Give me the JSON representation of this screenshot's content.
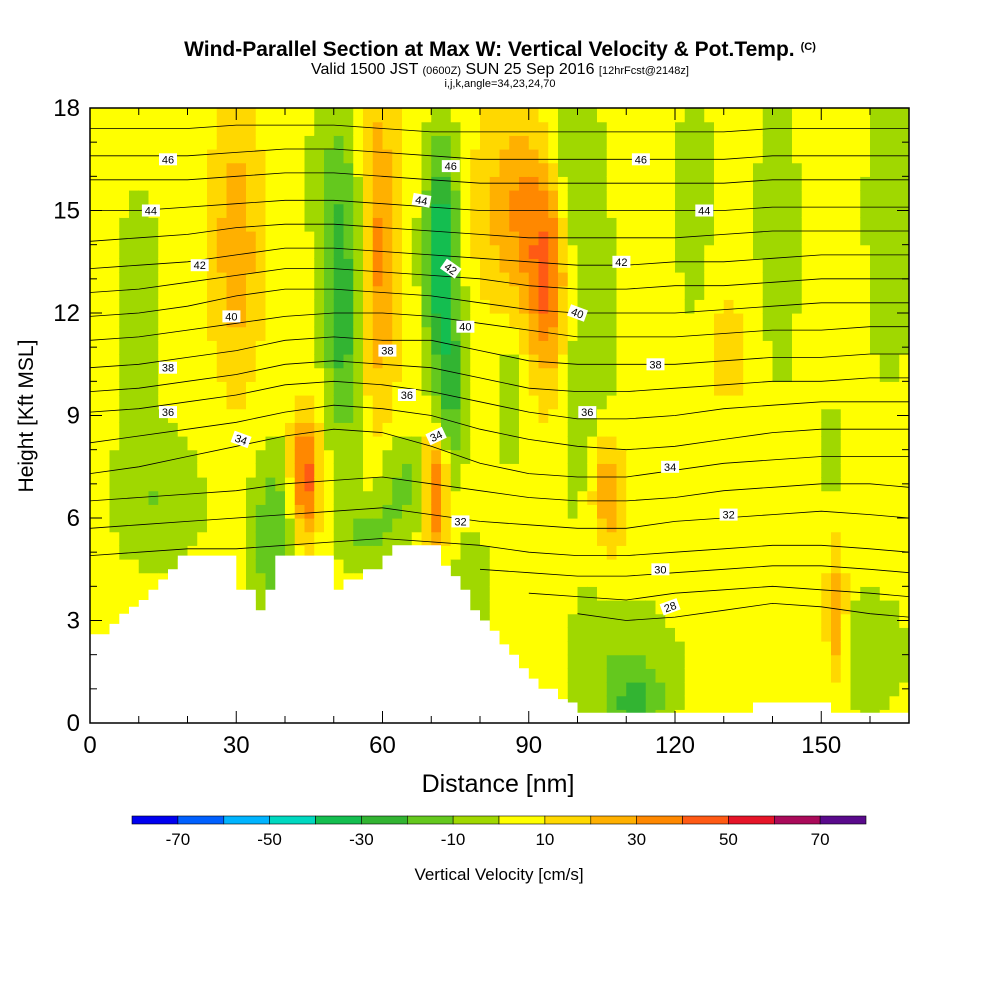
{
  "chart_data": {
    "type": "heatmap",
    "title": "Wind-Parallel Section at Max W: Vertical Velocity & Pot.Temp.",
    "title_mark": "(C)",
    "subtitle_main_a": "Valid 1500 JST",
    "subtitle_utc": "(0600Z)",
    "subtitle_main_b": "SUN 25 Sep 2016",
    "subtitle_fcst": "[12hrFcst@2148z]",
    "subtitle_indices": "i,j,k,angle=34,23,24,70",
    "xlabel": "Distance [nm]",
    "ylabel": "Height [Kft MSL]",
    "xlim": [
      0,
      168
    ],
    "ylim": [
      0,
      18
    ],
    "x_ticks": [
      0,
      30,
      60,
      90,
      120,
      150
    ],
    "y_ticks": [
      0,
      3,
      6,
      9,
      12,
      15,
      18
    ],
    "colorbar": {
      "label": "Vertical Velocity [cm/s]",
      "tick_labels": [
        "-70",
        "-50",
        "-30",
        "-10",
        "10",
        "30",
        "50",
        "70"
      ],
      "bounds": [
        -80,
        -70,
        -60,
        -50,
        -40,
        -30,
        -20,
        -10,
        0,
        10,
        20,
        30,
        40,
        50,
        60,
        70,
        80
      ],
      "colors": [
        "#0000f0",
        "#0060ff",
        "#00b4ff",
        "#00d8c0",
        "#14be50",
        "#32b432",
        "#64c81e",
        "#a0d800",
        "#ffff00",
        "#ffd800",
        "#ffb000",
        "#ff8800",
        "#ff5a14",
        "#e61428",
        "#aa0a5a",
        "#5a0a8c"
      ]
    },
    "w_background_cm_s": 5,
    "w_features": [
      {
        "x": 10,
        "z": 12,
        "rx": 5,
        "rz": 4,
        "w": -12
      },
      {
        "x": 14,
        "z": 6.5,
        "rx": 10,
        "rz": 2,
        "w": -14
      },
      {
        "x": 30,
        "z": 14,
        "rx": 5,
        "rz": 4,
        "w": 22
      },
      {
        "x": 38,
        "z": 5.5,
        "rx": 5,
        "rz": 2.5,
        "w": -25
      },
      {
        "x": 44,
        "z": 7.2,
        "rx": 3,
        "rz": 1.8,
        "w": 45
      },
      {
        "x": 50,
        "z": 16,
        "rx": 7,
        "rz": 2,
        "w": -12
      },
      {
        "x": 52,
        "z": 12,
        "rx": 4,
        "rz": 4,
        "w": -32
      },
      {
        "x": 57,
        "z": 5.5,
        "rx": 6,
        "rz": 1,
        "w": -18
      },
      {
        "x": 59,
        "z": 14,
        "rx": 4,
        "rz": 5,
        "w": 28
      },
      {
        "x": 64,
        "z": 7,
        "rx": 6,
        "rz": 1.5,
        "w": -18
      },
      {
        "x": 71,
        "z": 6.8,
        "rx": 2.6,
        "rz": 1.8,
        "w": 42
      },
      {
        "x": 72,
        "z": 13.8,
        "rx": 3.5,
        "rz": 3.3,
        "w": -45
      },
      {
        "x": 74,
        "z": 9.5,
        "rx": 3,
        "rz": 2.5,
        "w": -25
      },
      {
        "x": 78,
        "z": 3.5,
        "rx": 5,
        "rz": 2,
        "w": -13
      },
      {
        "x": 86,
        "z": 9.5,
        "rx": 3,
        "rz": 2,
        "w": -14
      },
      {
        "x": 88,
        "z": 15,
        "rx": 8,
        "rz": 3,
        "w": 26
      },
      {
        "x": 94,
        "z": 12.8,
        "rx": 4,
        "rz": 3,
        "w": 33
      },
      {
        "x": 98,
        "z": 16.5,
        "rx": 5,
        "rz": 2.5,
        "w": -15
      },
      {
        "x": 102,
        "z": 11,
        "rx": 6,
        "rz": 6,
        "w": -14
      },
      {
        "x": 106,
        "z": 6.8,
        "rx": 3.5,
        "rz": 1.8,
        "w": 28
      },
      {
        "x": 110,
        "z": 1.6,
        "rx": 12,
        "rz": 2,
        "w": -14
      },
      {
        "x": 112,
        "z": 0.5,
        "rx": 5,
        "rz": 1,
        "w": -22
      },
      {
        "x": 124,
        "z": 15,
        "rx": 4,
        "rz": 5,
        "w": -12
      },
      {
        "x": 130,
        "z": 11,
        "rx": 8,
        "rz": 2.5,
        "w": 8
      },
      {
        "x": 141,
        "z": 14,
        "rx": 5,
        "rz": 5,
        "w": -12
      },
      {
        "x": 152,
        "z": 8,
        "rx": 1.5,
        "rz": 1.2,
        "w": -22
      },
      {
        "x": 153,
        "z": 3.2,
        "rx": 2,
        "rz": 1.8,
        "w": 28
      },
      {
        "x": 160,
        "z": 2,
        "rx": 8,
        "rz": 2,
        "w": -12
      },
      {
        "x": 164,
        "z": 15,
        "rx": 5,
        "rz": 5,
        "w": -14
      }
    ],
    "theta_levels": [
      28,
      29,
      30,
      31,
      32,
      33,
      34,
      35,
      36,
      37,
      38,
      39,
      40,
      41,
      42,
      43,
      44,
      45,
      46,
      47
    ],
    "theta_heights": {
      "x": [
        0,
        10,
        20,
        30,
        40,
        50,
        60,
        70,
        80,
        90,
        100,
        110,
        120,
        130,
        140,
        150,
        160,
        168
      ],
      "levels": [
        {
          "theta": 28,
          "z": [
            null,
            null,
            null,
            null,
            null,
            null,
            null,
            null,
            null,
            null,
            3.2,
            3.0,
            3.1,
            3.3,
            3.5,
            3.4,
            3.2,
            3.1
          ]
        },
        {
          "theta": 29,
          "z": [
            null,
            null,
            null,
            null,
            null,
            null,
            null,
            null,
            null,
            3.8,
            3.7,
            3.6,
            3.8,
            3.9,
            4.0,
            3.9,
            3.8,
            3.7
          ]
        },
        {
          "theta": 30,
          "z": [
            null,
            null,
            null,
            null,
            null,
            null,
            null,
            null,
            4.5,
            4.4,
            4.3,
            4.3,
            4.4,
            4.5,
            4.6,
            4.6,
            4.5,
            4.4
          ]
        },
        {
          "theta": 31,
          "z": [
            4.9,
            5.0,
            5.1,
            5.1,
            5.2,
            5.3,
            5.4,
            5.3,
            5.2,
            5.0,
            4.9,
            4.9,
            5.0,
            5.1,
            5.2,
            5.2,
            5.1,
            5.0
          ]
        },
        {
          "theta": 32,
          "z": [
            5.7,
            5.8,
            5.9,
            6.0,
            6.1,
            6.2,
            6.3,
            6.1,
            5.9,
            5.8,
            5.7,
            5.7,
            5.9,
            6.0,
            6.1,
            6.2,
            6.1,
            6.0
          ]
        },
        {
          "theta": 33,
          "z": [
            6.5,
            6.6,
            6.7,
            6.8,
            7.0,
            7.1,
            7.2,
            7.0,
            6.8,
            6.6,
            6.5,
            6.5,
            6.6,
            6.8,
            6.9,
            7.0,
            7.0,
            6.9
          ]
        },
        {
          "theta": 34,
          "z": [
            7.3,
            7.5,
            7.8,
            8.1,
            8.4,
            8.6,
            8.5,
            8.1,
            7.6,
            7.3,
            7.2,
            7.2,
            7.4,
            7.6,
            7.7,
            7.8,
            7.8,
            7.8
          ]
        },
        {
          "theta": 35,
          "z": [
            8.2,
            8.4,
            8.6,
            8.8,
            9.1,
            9.3,
            9.2,
            9.0,
            8.6,
            8.3,
            8.1,
            8.0,
            8.1,
            8.3,
            8.5,
            8.6,
            8.6,
            8.6
          ]
        },
        {
          "theta": 36,
          "z": [
            9.1,
            9.2,
            9.4,
            9.6,
            9.9,
            10.0,
            9.9,
            9.7,
            9.4,
            9.1,
            8.9,
            8.9,
            9.0,
            9.2,
            9.3,
            9.4,
            9.4,
            9.4
          ]
        },
        {
          "theta": 37,
          "z": [
            9.7,
            9.8,
            10.0,
            10.2,
            10.5,
            10.6,
            10.5,
            10.4,
            10.1,
            9.8,
            9.7,
            9.7,
            9.8,
            9.9,
            10.0,
            10.0,
            10.1,
            10.1
          ]
        },
        {
          "theta": 38,
          "z": [
            10.4,
            10.5,
            10.7,
            10.9,
            11.2,
            11.3,
            11.2,
            11.2,
            10.9,
            10.6,
            10.5,
            10.5,
            10.5,
            10.6,
            10.7,
            10.7,
            10.8,
            10.8
          ]
        },
        {
          "theta": 39,
          "z": [
            11.2,
            11.3,
            11.5,
            11.7,
            11.9,
            12.0,
            12.0,
            11.9,
            11.7,
            11.5,
            11.3,
            11.3,
            11.3,
            11.4,
            11.5,
            11.5,
            11.6,
            11.6
          ]
        },
        {
          "theta": 40,
          "z": [
            11.9,
            12.0,
            12.2,
            12.5,
            12.7,
            12.7,
            12.6,
            12.5,
            12.3,
            12.1,
            12.0,
            12.0,
            12.0,
            12.1,
            12.2,
            12.3,
            12.3,
            12.3
          ]
        },
        {
          "theta": 41,
          "z": [
            12.6,
            12.7,
            12.9,
            13.1,
            13.3,
            13.3,
            13.2,
            13.1,
            13.0,
            12.8,
            12.7,
            12.7,
            12.8,
            12.8,
            12.9,
            13.0,
            13.0,
            13.0
          ]
        },
        {
          "theta": 42,
          "z": [
            13.3,
            13.4,
            13.5,
            13.7,
            13.9,
            13.9,
            13.8,
            13.7,
            13.6,
            13.5,
            13.4,
            13.4,
            13.5,
            13.5,
            13.6,
            13.7,
            13.7,
            13.7
          ]
        },
        {
          "theta": 43,
          "z": [
            14.1,
            14.2,
            14.3,
            14.5,
            14.6,
            14.6,
            14.5,
            14.4,
            14.3,
            14.2,
            14.2,
            14.2,
            14.2,
            14.3,
            14.4,
            14.4,
            14.4,
            14.4
          ]
        },
        {
          "theta": 44,
          "z": [
            15.0,
            15.0,
            15.1,
            15.2,
            15.3,
            15.3,
            15.2,
            15.1,
            15.0,
            15.0,
            15.0,
            15.0,
            15.0,
            15.0,
            15.1,
            15.1,
            15.1,
            15.1
          ]
        },
        {
          "theta": 45,
          "z": [
            15.9,
            15.9,
            15.9,
            16.0,
            16.1,
            16.1,
            16.0,
            15.9,
            15.8,
            15.8,
            15.8,
            15.8,
            15.8,
            15.8,
            15.9,
            15.9,
            15.9,
            15.9
          ]
        },
        {
          "theta": 46,
          "z": [
            16.6,
            16.6,
            16.6,
            16.7,
            16.8,
            16.8,
            16.7,
            16.6,
            16.5,
            16.5,
            16.5,
            16.5,
            16.5,
            16.5,
            16.6,
            16.6,
            16.6,
            16.6
          ]
        },
        {
          "theta": 47,
          "z": [
            17.4,
            17.4,
            17.4,
            17.5,
            17.5,
            17.5,
            17.4,
            17.3,
            17.3,
            17.3,
            17.3,
            17.3,
            17.3,
            17.3,
            17.4,
            17.4,
            17.4,
            17.4
          ]
        }
      ]
    },
    "theta_contour_labels": [
      {
        "text": "46",
        "x": 16,
        "z": 16.5,
        "angle": 0
      },
      {
        "text": "44",
        "x": 12.5,
        "z": 15.0,
        "angle": 0
      },
      {
        "text": "42",
        "x": 22.5,
        "z": 13.4,
        "angle": 0
      },
      {
        "text": "40",
        "x": 29,
        "z": 11.9,
        "angle": 0
      },
      {
        "text": "38",
        "x": 16,
        "z": 10.4,
        "angle": 0
      },
      {
        "text": "36",
        "x": 16,
        "z": 9.1,
        "angle": 0
      },
      {
        "text": "34",
        "x": 31,
        "z": 8.3,
        "angle": 20
      },
      {
        "text": "46",
        "x": 74,
        "z": 16.3,
        "angle": 0
      },
      {
        "text": "44",
        "x": 68,
        "z": 15.3,
        "angle": 10
      },
      {
        "text": "42",
        "x": 74,
        "z": 13.3,
        "angle": 35
      },
      {
        "text": "40",
        "x": 77,
        "z": 11.6,
        "angle": 0
      },
      {
        "text": "38",
        "x": 61,
        "z": 10.9,
        "angle": 0
      },
      {
        "text": "36",
        "x": 65,
        "z": 9.6,
        "angle": 0
      },
      {
        "text": "34",
        "x": 71,
        "z": 8.4,
        "angle": -25
      },
      {
        "text": "32",
        "x": 76,
        "z": 5.9,
        "angle": 0
      },
      {
        "text": "46",
        "x": 113,
        "z": 16.5,
        "angle": 0
      },
      {
        "text": "44",
        "x": 126,
        "z": 15.0,
        "angle": 0
      },
      {
        "text": "42",
        "x": 109,
        "z": 13.5,
        "angle": 0
      },
      {
        "text": "40",
        "x": 100,
        "z": 12.0,
        "angle": 20
      },
      {
        "text": "38",
        "x": 116,
        "z": 10.5,
        "angle": 0
      },
      {
        "text": "36",
        "x": 102,
        "z": 9.1,
        "angle": 0
      },
      {
        "text": "34",
        "x": 119,
        "z": 7.5,
        "angle": 0
      },
      {
        "text": "32",
        "x": 131,
        "z": 6.1,
        "angle": 0
      },
      {
        "text": "30",
        "x": 117,
        "z": 4.5,
        "angle": 0
      },
      {
        "text": "28",
        "x": 119,
        "z": 3.4,
        "angle": -20
      }
    ],
    "terrain": {
      "x": [
        0,
        2,
        4,
        6,
        8,
        10,
        12,
        14,
        16,
        18,
        20,
        22,
        24,
        26,
        28,
        30,
        32,
        34,
        36,
        38,
        40,
        42,
        44,
        46,
        48,
        50,
        52,
        54,
        56,
        58,
        60,
        62,
        64,
        66,
        68,
        70,
        72,
        74,
        76,
        78,
        80,
        82,
        84,
        86,
        88,
        90,
        92,
        94,
        96,
        98,
        100,
        102,
        104,
        106,
        108,
        110,
        112,
        114,
        116,
        118,
        120,
        122,
        124,
        126,
        128,
        130,
        132,
        134,
        136,
        138,
        140,
        142,
        144,
        146,
        148,
        150,
        152,
        154,
        156,
        158,
        160,
        162,
        164,
        166,
        168
      ],
      "z": [
        2.6,
        2.6,
        2.9,
        3.2,
        3.4,
        3.6,
        3.9,
        4.2,
        4.5,
        4.9,
        4.9,
        4.9,
        4.9,
        4.9,
        4.9,
        3.9,
        3.9,
        3.3,
        3.9,
        4.9,
        4.9,
        4.9,
        4.9,
        4.9,
        4.9,
        3.9,
        4.2,
        4.2,
        4.5,
        4.5,
        4.9,
        5.2,
        5.2,
        5.2,
        5.2,
        5.2,
        4.6,
        4.3,
        3.9,
        3.3,
        3.0,
        2.7,
        2.3,
        2.0,
        1.6,
        1.3,
        1.0,
        1.0,
        0.7,
        0.6,
        0.3,
        0.3,
        0.3,
        0.3,
        0.3,
        0.3,
        0.3,
        0.3,
        0.3,
        0.3,
        0.3,
        0.3,
        0.3,
        0.3,
        0.3,
        0.3,
        0.3,
        0.3,
        0.6,
        0.6,
        0.6,
        0.6,
        0.6,
        0.6,
        0.6,
        0.6,
        0.3,
        0.3,
        0.3,
        0.3,
        0.3,
        0.3,
        0.3,
        0.3,
        0.3
      ]
    }
  }
}
